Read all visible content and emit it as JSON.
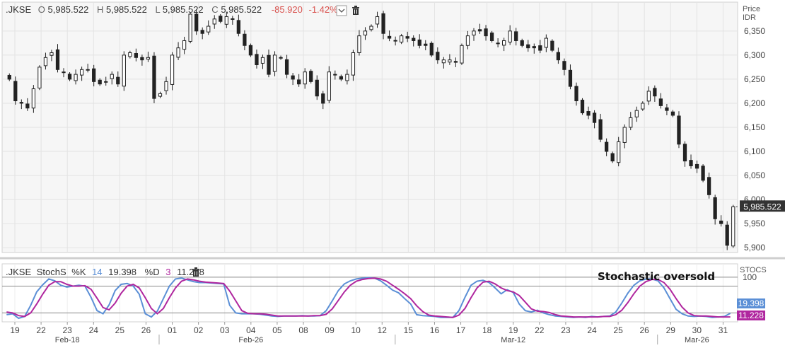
{
  "header": {
    "symbol": ".JKSE",
    "open_label": "O",
    "open_value": "5,985.522",
    "high_label": "H",
    "high_value": "5,985.522",
    "low_label": "L",
    "low_value": "5,985.522",
    "close_label": "C",
    "close_value": "5,985.522",
    "change": "-85.920",
    "change_pct": "-1.42%"
  },
  "price_axis": {
    "title_line1": "Price",
    "title_line2": "IDR",
    "last_price_tag": "5,985.522"
  },
  "stoch_header": {
    "symbol": ".JKSE",
    "name": "StochS",
    "k_label": "%K",
    "k_period": "14",
    "k_value": "19.398",
    "d_label": "%D",
    "d_period": "3",
    "d_value": "11.228"
  },
  "stoch_axis": {
    "title": "STOCS",
    "k_tag": "19.398",
    "d_tag": "11.228"
  },
  "annotation": "Stochastic oversold",
  "colors": {
    "candle_up": "#ffffff",
    "candle_down": "#222222",
    "candle_outline": "#222222",
    "k_line": "#5b8fd6",
    "d_line": "#b0279f",
    "change_red": "#d9534f",
    "price_tag_bg": "#333333",
    "k_tag_bg": "#5b8fd6",
    "d_tag_bg": "#b0279f",
    "grid": "#e3e3e3",
    "plot_bg": "#f6f6f6"
  },
  "chart_data": [
    {
      "type": "candlestick",
      "name": "price",
      "y_axis": {
        "ticks": [
          5900,
          5950,
          6000,
          6050,
          6100,
          6150,
          6200,
          6250,
          6300,
          6350
        ],
        "ylim": [
          5890,
          6410
        ]
      },
      "grid": true,
      "x_tick_labels": [
        "19",
        "22",
        "23",
        "24",
        "25",
        "26",
        "01",
        "02",
        "03",
        "04",
        "05",
        "08",
        "09",
        "10",
        "12",
        "15",
        "16",
        "17",
        "18",
        "19",
        "22",
        "23",
        "24",
        "25",
        "26",
        "29",
        "30",
        "31"
      ],
      "x_period_labels": [
        "Feb-18",
        "Feb-26",
        "Mar-12",
        "Mar-26"
      ],
      "close": [
        6250,
        6205,
        6200,
        6190,
        6230,
        6275,
        6295,
        6305,
        6270,
        6265,
        6250,
        6260,
        6270,
        6270,
        6245,
        6240,
        6245,
        6260,
        6240,
        6300,
        6305,
        6295,
        6290,
        6295,
        6210,
        6220,
        6245,
        6300,
        6315,
        6330,
        6385,
        6350,
        6345,
        6360,
        6375,
        6370,
        6380,
        6375,
        6345,
        6320,
        6300,
        6280,
        6295,
        6260,
        6300,
        6295,
        6260,
        6250,
        6240,
        6265,
        6245,
        6215,
        6200,
        6265,
        6260,
        6250,
        6260,
        6305,
        6340,
        6350,
        6360,
        6380,
        6345,
        6335,
        6330,
        6340,
        6335,
        6330,
        6320,
        6320,
        6300,
        6290,
        6290,
        6290,
        6285,
        6320,
        6340,
        6350,
        6350,
        6340,
        6330,
        6325,
        6330,
        6350,
        6330,
        6320,
        6315,
        6315,
        6310,
        6335,
        6310,
        6290,
        6270,
        6235,
        6205,
        6180,
        6175,
        6160,
        6125,
        6100,
        6080,
        6120,
        6150,
        6170,
        6185,
        6200,
        6225,
        6215,
        6195,
        6185,
        6175,
        6115,
        6080,
        6070,
        6065,
        6040,
        6010,
        5960,
        5950,
        5905,
        5985
      ]
    },
    {
      "type": "line",
      "name": "stochastic",
      "y_axis": {
        "ticks": [
          100
        ],
        "ylim": [
          0,
          130
        ]
      },
      "reference_lines": [
        100,
        80,
        20
      ],
      "series": [
        {
          "name": "%K",
          "values": [
            16,
            18,
            8,
            12,
            37,
            67,
            83,
            96,
            92,
            82,
            78,
            80,
            82,
            80,
            55,
            25,
            18,
            38,
            70,
            84,
            86,
            80,
            62,
            18,
            11,
            24,
            52,
            80,
            96,
            98,
            94,
            90,
            88,
            88,
            87,
            86,
            85,
            37,
            20,
            18,
            18,
            18,
            17,
            15,
            13,
            12,
            13,
            13,
            13,
            14,
            13,
            13,
            14,
            25,
            47,
            70,
            85,
            92,
            96,
            98,
            99,
            98,
            92,
            82,
            71,
            65,
            52,
            40,
            16,
            14,
            13,
            12,
            10,
            10,
            10,
            25,
            55,
            82,
            91,
            93,
            88,
            76,
            63,
            72,
            66,
            40,
            25,
            22,
            26,
            20,
            16,
            13,
            12,
            11,
            10,
            11,
            10,
            12,
            11,
            12,
            13,
            22,
            42,
            64,
            82,
            92,
            96,
            96,
            92,
            76,
            52,
            28,
            18,
            13,
            12,
            13,
            12,
            10,
            11,
            12,
            19
          ]
        },
        {
          "name": "%D",
          "values": [
            22,
            20,
            14,
            12,
            20,
            40,
            62,
            82,
            90,
            90,
            84,
            80,
            80,
            81,
            73,
            53,
            32,
            27,
            42,
            64,
            80,
            84,
            76,
            54,
            30,
            18,
            30,
            54,
            76,
            91,
            96,
            94,
            91,
            89,
            88,
            87,
            86,
            69,
            47,
            25,
            19,
            18,
            18,
            17,
            15,
            13,
            13,
            13,
            13,
            13,
            13,
            14,
            14,
            17,
            29,
            48,
            67,
            82,
            91,
            95,
            97,
            98,
            96,
            91,
            82,
            73,
            63,
            52,
            36,
            23,
            15,
            13,
            12,
            11,
            10,
            15,
            30,
            54,
            76,
            89,
            91,
            85,
            76,
            70,
            67,
            59,
            44,
            29,
            24,
            23,
            21,
            16,
            13,
            12,
            11,
            11,
            11,
            11,
            11,
            12,
            12,
            16,
            26,
            43,
            63,
            80,
            90,
            95,
            95,
            88,
            73,
            52,
            33,
            20,
            14,
            13,
            13,
            12,
            11,
            11,
            11
          ]
        }
      ]
    }
  ]
}
